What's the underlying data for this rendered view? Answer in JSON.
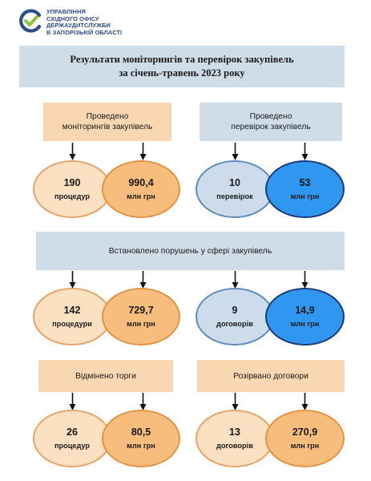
{
  "header": {
    "org_lines": [
      "УПРАВЛІННЯ",
      "СХІДНОГО ОФІСУ",
      "ДЕРЖАУДИТСЛУЖБИ",
      "В ЗАПОРІЗЬКІЙ ОБЛАСТІ"
    ]
  },
  "title": {
    "line1": "Результати моніторингів та перевірок закупівель",
    "line2": "за січень-травень 2023 року"
  },
  "sections": {
    "monitoring": {
      "label_line1": "Проведено",
      "label_line2": "моніторингів  закупівель",
      "count": "190",
      "count_unit": "процедур",
      "amount": "990,4",
      "amount_unit": "млн грн"
    },
    "inspections": {
      "label_line1": "Проведено",
      "label_line2": "перевірок  закупівель",
      "count": "10",
      "count_unit": "перевірок",
      "amount": "53",
      "amount_unit": "млн грн"
    },
    "violations": {
      "label": "Встановлено порушень у сфері закупівель",
      "left_count": "142",
      "left_count_unit": "процедури",
      "left_amount": "729,7",
      "left_amount_unit": "млн грн",
      "right_count": "9",
      "right_count_unit": "договорів",
      "right_amount": "14,9",
      "right_amount_unit": "млн грн"
    },
    "cancelled": {
      "label": "Відмінено торги",
      "count": "26",
      "count_unit": "процедур",
      "amount": "80,5",
      "amount_unit": "млн грн"
    },
    "terminated": {
      "label": "Розірвано договори",
      "count": "13",
      "count_unit": "договорів",
      "amount": "270,9",
      "amount_unit": "млн грн"
    }
  },
  "colors": {
    "title_bg": "#cfdde9",
    "orange_box": "#f8d7b2",
    "blue_box": "#cfdde9",
    "peach_oval": "#fbe0c2",
    "orange_oval": "#f7bd7c",
    "lightblue_oval": "#cddceb",
    "bright_blue_oval": "#2f97f0",
    "logo_blue": "#2b4c8c",
    "logo_green": "#8cc63f"
  }
}
